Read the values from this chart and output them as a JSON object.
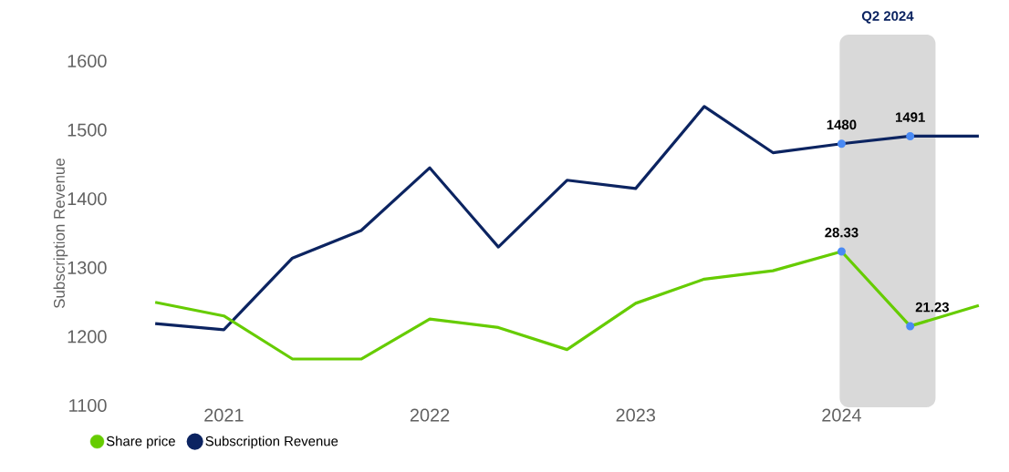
{
  "chart_data": {
    "type": "line",
    "categories": [
      null,
      "2021",
      null,
      null,
      "2022",
      null,
      null,
      "2023",
      null,
      null,
      "2024",
      null,
      null
    ],
    "ylabel": "Subscription Revenue",
    "ylim": [
      1100,
      1600
    ],
    "yticks": [
      1100,
      1200,
      1300,
      1400,
      1500,
      1600
    ],
    "series": [
      {
        "name": "Share price",
        "color": "#66cc00",
        "axis": "y2",
        "values": [
          23.5,
          22.2,
          18.1,
          18.1,
          21.9,
          21.1,
          19.0,
          23.4,
          25.7,
          26.5,
          28.33,
          21.23,
          23.2
        ],
        "value_labels": [
          null,
          null,
          null,
          null,
          null,
          null,
          null,
          null,
          null,
          null,
          "28.33",
          "21.23",
          null
        ]
      },
      {
        "name": "Subscription Revenue",
        "color": "#0c2461",
        "values": [
          1219,
          1210,
          1314,
          1354,
          1445,
          1330,
          1427,
          1415,
          1534,
          1467,
          1480,
          1491,
          1491
        ],
        "value_labels": [
          null,
          null,
          null,
          null,
          null,
          null,
          null,
          null,
          null,
          null,
          "1480",
          "1491",
          null
        ]
      }
    ],
    "annotations": [
      "Q2 2024"
    ],
    "legend": "bottom"
  }
}
